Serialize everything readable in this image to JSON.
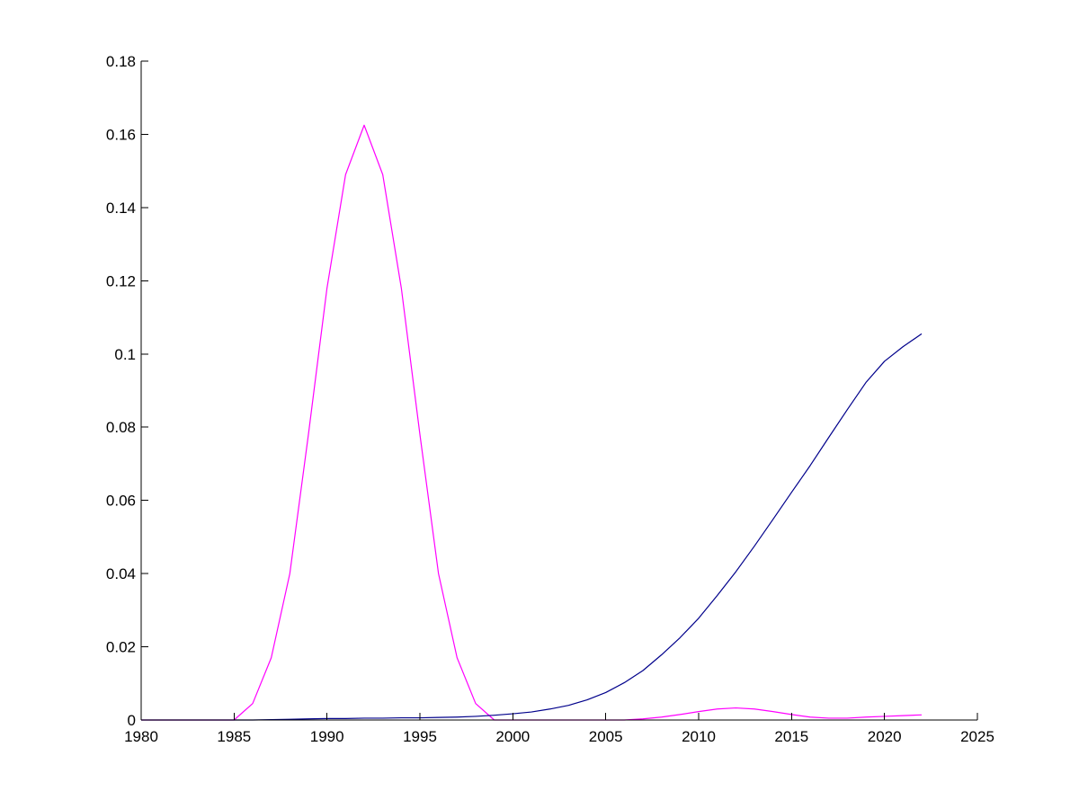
{
  "chart_data": {
    "type": "line",
    "title": "",
    "xlabel": "",
    "ylabel": "",
    "xlim": [
      1980,
      2025
    ],
    "ylim": [
      0,
      0.18
    ],
    "xticks": [
      1980,
      1985,
      1990,
      1995,
      2000,
      2005,
      2010,
      2015,
      2020,
      2025
    ],
    "xtick_labels": [
      "1980",
      "1985",
      "1990",
      "1995",
      "2000",
      "2005",
      "2010",
      "2015",
      "2020",
      "2025"
    ],
    "yticks": [
      0,
      0.02,
      0.04,
      0.06,
      0.08,
      0.1,
      0.12,
      0.14,
      0.16,
      0.18
    ],
    "ytick_labels": [
      "0",
      "0.02",
      "0.04",
      "0.06",
      "0.08",
      "0.1",
      "0.12",
      "0.14",
      "0.16",
      "0.18"
    ],
    "grid": false,
    "legend": "none",
    "series": [
      {
        "color": "#ff00ff",
        "x": [
          1980,
          1981,
          1982,
          1983,
          1984,
          1985,
          1986,
          1987,
          1988,
          1989,
          1990,
          1991,
          1992,
          1993,
          1994,
          1995,
          1996,
          1997,
          1998,
          1999,
          2000,
          2001,
          2002,
          2003,
          2004,
          2005,
          2006,
          2007,
          2008,
          2009,
          2010,
          2011,
          2012,
          2013,
          2014,
          2015,
          2016,
          2017,
          2018,
          2019,
          2020,
          2021,
          2022
        ],
        "values": [
          0,
          0,
          0,
          0,
          0,
          0,
          0.0045,
          0.017,
          0.04,
          0.078,
          0.118,
          0.149,
          0.1625,
          0.149,
          0.118,
          0.078,
          0.04,
          0.017,
          0.0045,
          0,
          0,
          0,
          0,
          0,
          0,
          0,
          0,
          0.0003,
          0.0008,
          0.0015,
          0.0023,
          0.003,
          0.0033,
          0.003,
          0.0023,
          0.0015,
          0.0008,
          0.0005,
          0.0005,
          0.0008,
          0.001,
          0.0012,
          0.0014
        ]
      },
      {
        "color": "#00008b",
        "x": [
          1980,
          1981,
          1982,
          1983,
          1984,
          1985,
          1986,
          1987,
          1988,
          1989,
          1990,
          1991,
          1992,
          1993,
          1994,
          1995,
          1996,
          1997,
          1998,
          1999,
          2000,
          2001,
          2002,
          2003,
          2004,
          2005,
          2006,
          2007,
          2008,
          2009,
          2010,
          2011,
          2012,
          2013,
          2014,
          2015,
          2016,
          2017,
          2018,
          2019,
          2020,
          2021,
          2022
        ],
        "values": [
          0,
          0,
          0,
          0,
          0,
          0,
          0,
          0.0001,
          0.0002,
          0.0003,
          0.0004,
          0.0004,
          0.0005,
          0.0005,
          0.0006,
          0.0006,
          0.0007,
          0.0008,
          0.001,
          0.0013,
          0.0017,
          0.0022,
          0.003,
          0.004,
          0.0055,
          0.0075,
          0.0102,
          0.0135,
          0.0178,
          0.0225,
          0.0278,
          0.034,
          0.0405,
          0.0475,
          0.0548,
          0.0622,
          0.0695,
          0.0772,
          0.0848,
          0.0922,
          0.098,
          0.102,
          0.1055
        ]
      }
    ]
  }
}
